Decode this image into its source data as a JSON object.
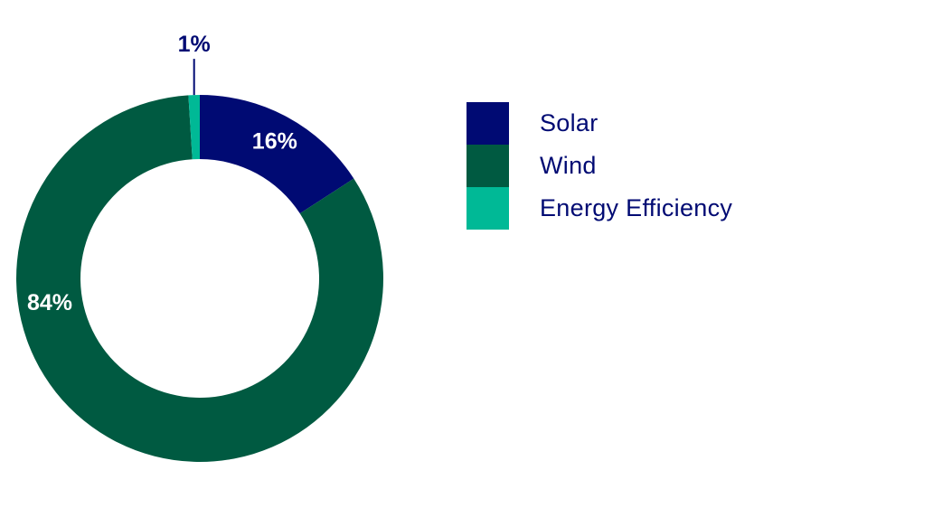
{
  "chart_data": {
    "type": "pie",
    "donut": true,
    "categories": [
      "Solar",
      "Wind",
      "Energy Efficiency"
    ],
    "values": [
      16,
      84,
      1
    ],
    "value_labels": [
      "16%",
      "84%",
      "1%"
    ],
    "colors": [
      "#000a73",
      "#005a41",
      "#00b996"
    ],
    "legend_position": "right"
  },
  "colors": {
    "label_on_dark": "#ffffff",
    "label_outside": "#000a73"
  }
}
